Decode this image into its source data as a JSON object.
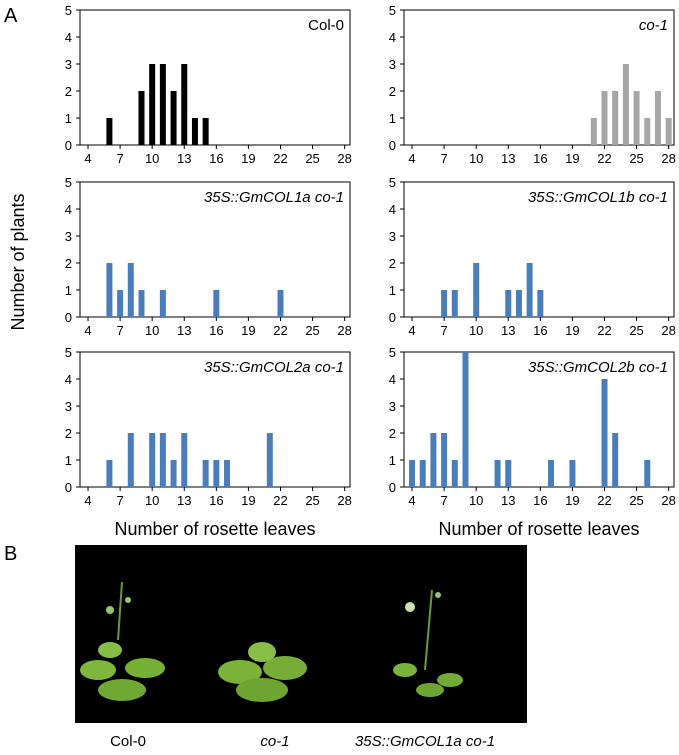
{
  "panel_labels": [
    "A",
    "B"
  ],
  "y_label": "Number of plants",
  "chart_data": [
    {
      "type": "bar",
      "title": "Col-0",
      "title_italic": false,
      "color": "#000000",
      "x": [
        6,
        9,
        10,
        11,
        12,
        13,
        14,
        15
      ],
      "values": [
        1,
        2,
        3,
        3,
        2,
        3,
        1,
        1
      ],
      "xlim": [
        3.25,
        28.5
      ],
      "xticks": [
        4,
        7,
        10,
        13,
        16,
        19,
        22,
        25,
        28
      ],
      "ylim": [
        0,
        5
      ],
      "yticks": [
        0,
        1,
        2,
        3,
        4,
        5
      ]
    },
    {
      "type": "bar",
      "title": "co-1",
      "title_italic": true,
      "color": "#a6a6a6",
      "x": [
        21,
        22,
        23,
        24,
        25,
        26,
        27,
        28
      ],
      "values": [
        1,
        2,
        2,
        3,
        2,
        1,
        2,
        1
      ],
      "xlim": [
        3.25,
        28.5
      ],
      "xticks": [
        4,
        7,
        10,
        13,
        16,
        19,
        22,
        25,
        28
      ],
      "ylim": [
        0,
        5
      ],
      "yticks": [
        0,
        1,
        2,
        3,
        4,
        5
      ]
    },
    {
      "type": "bar",
      "title": "35S::GmCOL1a co-1",
      "title_italic": true,
      "color": "#4a7ebb",
      "x": [
        6,
        7,
        8,
        9,
        11,
        16,
        22
      ],
      "values": [
        2,
        1,
        2,
        1,
        1,
        1,
        1
      ],
      "xlim": [
        3.25,
        28.5
      ],
      "xticks": [
        4,
        7,
        10,
        13,
        16,
        19,
        22,
        25,
        28
      ],
      "ylim": [
        0,
        5
      ],
      "yticks": [
        0,
        1,
        2,
        3,
        4,
        5
      ]
    },
    {
      "type": "bar",
      "title": "35S::GmCOL1b co-1",
      "title_italic": true,
      "color": "#4a7ebb",
      "x": [
        7,
        8,
        10,
        13,
        14,
        15,
        16
      ],
      "values": [
        1,
        1,
        2,
        1,
        1,
        2,
        1
      ],
      "xlim": [
        3.25,
        28.5
      ],
      "xticks": [
        4,
        7,
        10,
        13,
        16,
        19,
        22,
        25,
        28
      ],
      "ylim": [
        0,
        5
      ],
      "yticks": [
        0,
        1,
        2,
        3,
        4,
        5
      ]
    },
    {
      "type": "bar",
      "title": "35S::GmCOL2a co-1",
      "title_italic": true,
      "color": "#4a7ebb",
      "xlabel": "Number of rosette leaves",
      "x": [
        6,
        8,
        10,
        11,
        12,
        13,
        15,
        16,
        17,
        21
      ],
      "values": [
        1,
        2,
        2,
        2,
        1,
        2,
        1,
        1,
        1,
        2
      ],
      "xlim": [
        3.25,
        28.5
      ],
      "xticks": [
        4,
        7,
        10,
        13,
        16,
        19,
        22,
        25,
        28
      ],
      "ylim": [
        0,
        5
      ],
      "yticks": [
        0,
        1,
        2,
        3,
        4,
        5
      ]
    },
    {
      "type": "bar",
      "title": "35S::GmCOL2b co-1",
      "title_italic": true,
      "color": "#4a7ebb",
      "xlabel": "Number of rosette leaves",
      "x": [
        4,
        5,
        6,
        7,
        8,
        9,
        12,
        13,
        17,
        19,
        22,
        23,
        26
      ],
      "values": [
        1,
        1,
        2,
        2,
        1,
        5,
        1,
        1,
        1,
        1,
        4,
        2,
        1
      ],
      "xlim": [
        3.25,
        28.5
      ],
      "xticks": [
        4,
        7,
        10,
        13,
        16,
        19,
        22,
        25,
        28
      ],
      "ylim": [
        0,
        5
      ],
      "yticks": [
        0,
        1,
        2,
        3,
        4,
        5
      ]
    }
  ],
  "photo": {
    "labels": [
      "Col-0",
      "co-1",
      "35S::GmCOL1a co-1"
    ]
  }
}
